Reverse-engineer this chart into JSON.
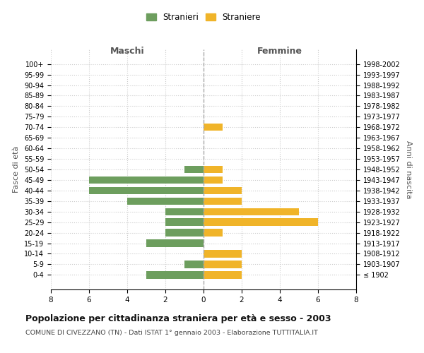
{
  "age_groups": [
    "100+",
    "95-99",
    "90-94",
    "85-89",
    "80-84",
    "75-79",
    "70-74",
    "65-69",
    "60-64",
    "55-59",
    "50-54",
    "45-49",
    "40-44",
    "35-39",
    "30-34",
    "25-29",
    "20-24",
    "15-19",
    "10-14",
    "5-9",
    "0-4"
  ],
  "birth_years": [
    "≤ 1902",
    "1903-1907",
    "1908-1912",
    "1913-1917",
    "1918-1922",
    "1923-1927",
    "1928-1932",
    "1933-1937",
    "1938-1942",
    "1943-1947",
    "1948-1952",
    "1953-1957",
    "1958-1962",
    "1963-1967",
    "1968-1972",
    "1973-1977",
    "1978-1982",
    "1983-1987",
    "1988-1992",
    "1993-1997",
    "1998-2002"
  ],
  "males": [
    0,
    0,
    0,
    0,
    0,
    0,
    0,
    0,
    0,
    0,
    1,
    6,
    6,
    4,
    2,
    2,
    2,
    3,
    0,
    1,
    3
  ],
  "females": [
    0,
    0,
    0,
    0,
    0,
    0,
    1,
    0,
    0,
    0,
    1,
    1,
    2,
    2,
    5,
    6,
    1,
    0,
    2,
    2,
    2
  ],
  "male_color": "#6d9e5e",
  "female_color": "#f0b429",
  "title": "Popolazione per cittadinanza straniera per età e sesso - 2003",
  "subtitle": "COMUNE DI CIVEZZANO (TN) - Dati ISTAT 1° gennaio 2003 - Elaborazione TUTTITALIA.IT",
  "xlabel_left": "Maschi",
  "xlabel_right": "Femmine",
  "ylabel_left": "Fasce di età",
  "ylabel_right": "Anni di nascita",
  "legend_male": "Stranieri",
  "legend_female": "Straniere",
  "xlim": 8,
  "background_color": "#ffffff",
  "grid_color": "#cccccc"
}
